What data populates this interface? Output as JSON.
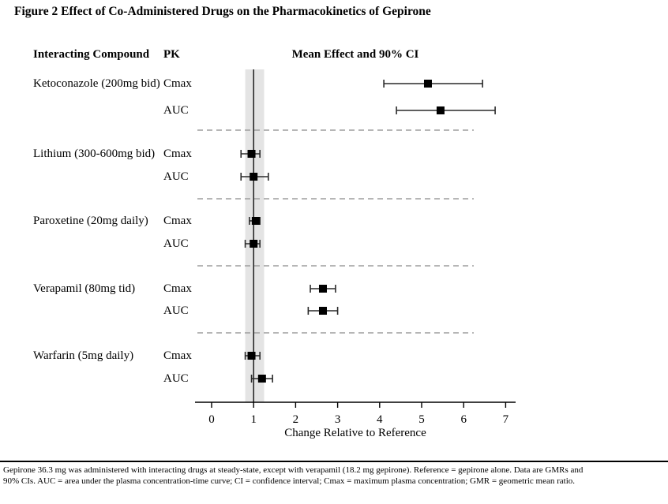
{
  "title": "Figure 2 Effect of Co-Administered Drugs on the Pharmacokinetics of Gepirone",
  "columns": {
    "compound": "Interacting Compound",
    "pk": "PK",
    "effect": "Mean Effect and 90% CI"
  },
  "chart_data": {
    "type": "forest",
    "title": "Mean Effect and 90% CI",
    "xlabel": "Change Relative to Reference",
    "xlim": [
      0,
      7
    ],
    "xticks": [
      0,
      1,
      2,
      3,
      4,
      5,
      6,
      7
    ],
    "reference_line": 1,
    "reference_band": [
      0.8,
      1.25
    ],
    "legend": "none",
    "grid": false,
    "groups": [
      {
        "compound": "Ketoconazole (200mg bid)",
        "rows": [
          {
            "pk": "Cmax",
            "mean": 5.15,
            "lo": 4.1,
            "hi": 6.45
          },
          {
            "pk": "AUC",
            "mean": 5.45,
            "lo": 4.4,
            "hi": 6.75
          }
        ]
      },
      {
        "compound": "Lithium (300-600mg bid)",
        "rows": [
          {
            "pk": "Cmax",
            "mean": 0.95,
            "lo": 0.7,
            "hi": 1.15
          },
          {
            "pk": "AUC",
            "mean": 1.0,
            "lo": 0.7,
            "hi": 1.35
          }
        ]
      },
      {
        "compound": "Paroxetine (20mg daily)",
        "rows": [
          {
            "pk": "Cmax",
            "mean": 1.05,
            "lo": 0.9,
            "hi": 1.15
          },
          {
            "pk": "AUC",
            "mean": 1.0,
            "lo": 0.8,
            "hi": 1.15
          }
        ]
      },
      {
        "compound": "Verapamil (80mg tid)",
        "rows": [
          {
            "pk": "Cmax",
            "mean": 2.65,
            "lo": 2.35,
            "hi": 2.95
          },
          {
            "pk": "AUC",
            "mean": 2.65,
            "lo": 2.3,
            "hi": 3.0
          }
        ]
      },
      {
        "compound": "Warfarin (5mg daily)",
        "rows": [
          {
            "pk": "Cmax",
            "mean": 0.95,
            "lo": 0.8,
            "hi": 1.15
          },
          {
            "pk": "AUC",
            "mean": 1.2,
            "lo": 0.95,
            "hi": 1.45
          }
        ]
      }
    ]
  },
  "footnote": {
    "line1": "Gepirone 36.3 mg was administered with interacting drugs at steady-state, except with verapamil (18.2 mg gepirone). Reference = gepirone alone. Data are GMRs and",
    "line2": "90% CIs. AUC = area under the plasma concentration-time curve; CI = confidence interval; Cmax = maximum plasma concentration; GMR = geometric mean ratio."
  },
  "colors": {
    "band": "#e4e4e4",
    "reference_line": "#000000",
    "separator": "#9e9e9e",
    "marker": "#000000",
    "ci": "#2a2a2a",
    "axis": "#000000"
  }
}
